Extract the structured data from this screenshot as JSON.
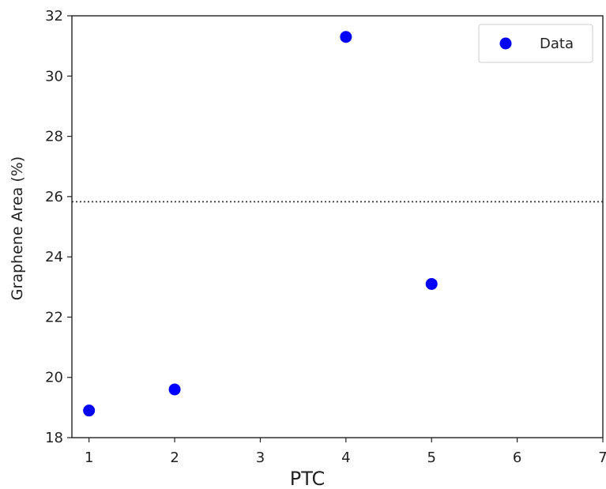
{
  "chart_data": {
    "type": "scatter",
    "xlabel": "PTC",
    "ylabel": "Graphene Area (%)",
    "xlim": [
      0.8,
      7
    ],
    "ylim": [
      18,
      32
    ],
    "xticks": [
      1,
      2,
      3,
      4,
      5,
      6,
      7
    ],
    "yticks": [
      18,
      20,
      22,
      24,
      26,
      28,
      30,
      32
    ],
    "series": [
      {
        "name": "Data",
        "color": "#0000ff",
        "points": [
          {
            "x": 1,
            "y": 18.9
          },
          {
            "x": 2,
            "y": 19.6
          },
          {
            "x": 4,
            "y": 31.3
          },
          {
            "x": 5,
            "y": 23.1
          }
        ]
      }
    ],
    "reference_line": {
      "y": 25.83,
      "style": "dotted",
      "color": "#333333"
    },
    "legend": {
      "position": "top-right"
    },
    "grid": false
  }
}
